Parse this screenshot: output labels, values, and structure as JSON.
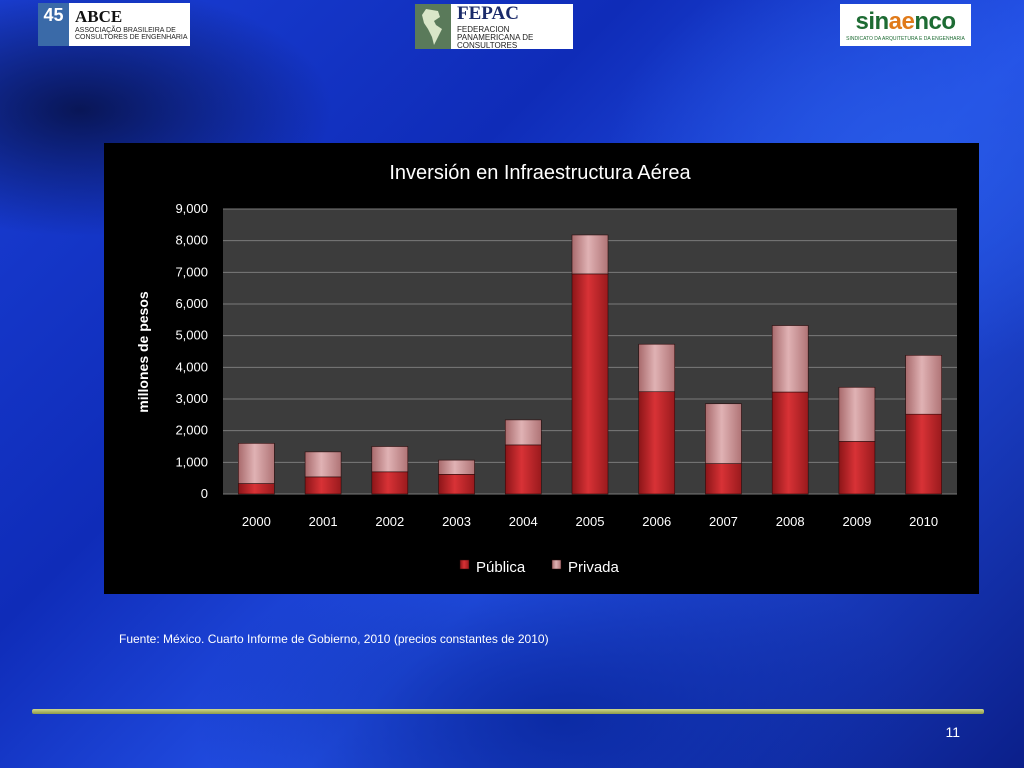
{
  "logos": {
    "abce": {
      "mark": "45",
      "name": "ABCE",
      "subtitle": "ASSOCIAÇÃO BRASILEIRA DE CONSULTORES DE ENGENHARIA"
    },
    "fepac": {
      "name": "FEPAC",
      "subtitle": "FEDERACION PANAMERICANA DE CONSULTORES"
    },
    "sinaenco": {
      "name_part1": "sin",
      "name_part2": "ae",
      "name_part3": "nco",
      "subtitle": "SINDICATO DA ARQUITETURA E DA ENGENHARIA"
    }
  },
  "colors": {
    "publica": "#c0262a",
    "privada": "#d49a9c",
    "gridline": "#7a7a7a",
    "plot_background": "#3c3c3c",
    "panel_background": "#000000"
  },
  "chart_data": {
    "type": "bar",
    "stacked": true,
    "title": "Inversión en Infraestructura Aérea",
    "xlabel": "",
    "ylabel": "millones de pesos",
    "categories": [
      "2000",
      "2001",
      "2002",
      "2003",
      "2004",
      "2005",
      "2006",
      "2007",
      "2008",
      "2009",
      "2010"
    ],
    "series": [
      {
        "name": "Pública",
        "values": [
          330,
          540,
          700,
          620,
          1550,
          6950,
          3230,
          960,
          3220,
          1660,
          2520
        ]
      },
      {
        "name": "Privada",
        "values": [
          1270,
          790,
          800,
          450,
          790,
          1230,
          1500,
          1890,
          2100,
          1710,
          1860
        ]
      }
    ],
    "ylim": [
      0,
      9000
    ],
    "yticks": [
      "0",
      "1,000",
      "2,000",
      "3,000",
      "4,000",
      "5,000",
      "6,000",
      "7,000",
      "8,000",
      "9,000"
    ],
    "grid": true,
    "legend_position": "bottom"
  },
  "source_note": "Fuente: México. Cuarto Informe de Gobierno, 2010 (precios constantes de 2010)",
  "page_number": "11"
}
